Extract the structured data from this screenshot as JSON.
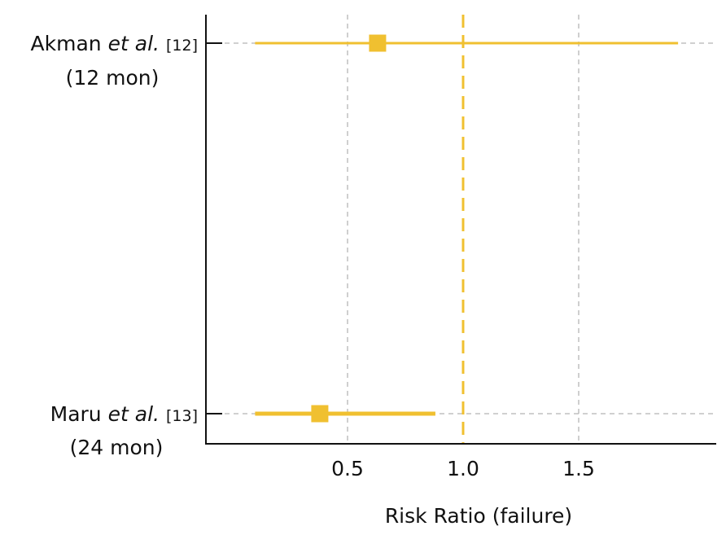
{
  "chart_data": {
    "type": "forest",
    "xlabel": "Risk Ratio (failure)",
    "xlim": [
      0.07,
      2.1
    ],
    "x_ticks": [
      {
        "value": 0.5,
        "label": "0.5"
      },
      {
        "value": 1.0,
        "label": "1.0"
      },
      {
        "value": 1.5,
        "label": "1.5"
      }
    ],
    "reference_line": 1.0,
    "grid": true,
    "color": "#f0c030",
    "studies": [
      {
        "name": "Akman",
        "etal": "et al.",
        "ref": "[12]",
        "subtitle": "(12 mon)",
        "estimate": 0.63,
        "ci_low": 0.1,
        "ci_high": 1.93
      },
      {
        "name": "Maru",
        "etal": "et al.",
        "ref": "[13]",
        "subtitle": "(24 mon)",
        "estimate": 0.38,
        "ci_low": 0.1,
        "ci_high": 0.88
      }
    ]
  }
}
